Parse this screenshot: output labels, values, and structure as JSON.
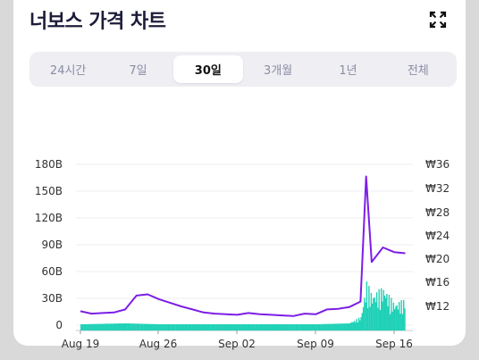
{
  "header": {
    "title": "너보스 가격 차트",
    "expand_icon": "expand-icon"
  },
  "tabs": [
    {
      "label": "24시간",
      "active": false
    },
    {
      "label": "7일",
      "active": false
    },
    {
      "label": "30일",
      "active": true
    },
    {
      "label": "3개월",
      "active": false
    },
    {
      "label": "1년",
      "active": false
    },
    {
      "label": "전체",
      "active": false
    }
  ],
  "colors": {
    "price_line": "#7c1ee6",
    "volume_bars": "#1fd1b6",
    "gridline": "#ececf2",
    "tab_bg": "#eeeef3",
    "active_tab_bg": "#ffffff"
  },
  "chart_data": {
    "type": "line",
    "y_left_ticks": [
      "180B",
      "150B",
      "120B",
      "90B",
      "60B",
      "30B",
      "0"
    ],
    "y_right_ticks": [
      "₩36",
      "₩32",
      "₩28",
      "₩24",
      "₩20",
      "₩16",
      "₩12"
    ],
    "x_ticks": [
      "Aug 19",
      "Aug 26",
      "Sep 02",
      "Sep 09",
      "Sep 16"
    ],
    "grid": true,
    "series": [
      {
        "axis": "right",
        "x": [
          "Aug 19",
          "Aug 20",
          "Aug 21",
          "Aug 22",
          "Aug 23",
          "Aug 24",
          "Aug 25",
          "Aug 26",
          "Aug 27",
          "Aug 28",
          "Aug 29",
          "Aug 30",
          "Aug 31",
          "Sep 01",
          "Sep 02",
          "Sep 03",
          "Sep 04",
          "Sep 05",
          "Sep 06",
          "Sep 07",
          "Sep 08",
          "Sep 09",
          "Sep 10",
          "Sep 11",
          "Sep 12",
          "Sep 13",
          "Sep 13.5",
          "Sep 14",
          "Sep 15",
          "Sep 16",
          "Sep 17"
        ],
        "values": [
          11.2,
          10.8,
          10.9,
          11.0,
          11.5,
          13.8,
          14.0,
          13.2,
          12.6,
          12.0,
          11.5,
          11.0,
          10.8,
          10.7,
          10.6,
          10.9,
          10.7,
          10.6,
          10.5,
          10.4,
          10.8,
          10.7,
          11.5,
          11.6,
          11.9,
          12.8,
          34.0,
          19.5,
          22.0,
          21.2,
          21.0
        ]
      },
      {
        "axis": "left",
        "x": [
          "Aug 19",
          "Aug 23",
          "Aug 26",
          "Aug 30",
          "Sep 02",
          "Sep 06",
          "Sep 09",
          "Sep 12",
          "Sep 13",
          "Sep 13.5",
          "Sep 14",
          "Sep 15",
          "Sep 16",
          "Sep 17"
        ],
        "values": [
          1,
          2,
          1,
          1,
          1,
          1,
          1,
          2,
          10,
          50,
          35,
          44,
          25,
          30
        ]
      }
    ]
  }
}
